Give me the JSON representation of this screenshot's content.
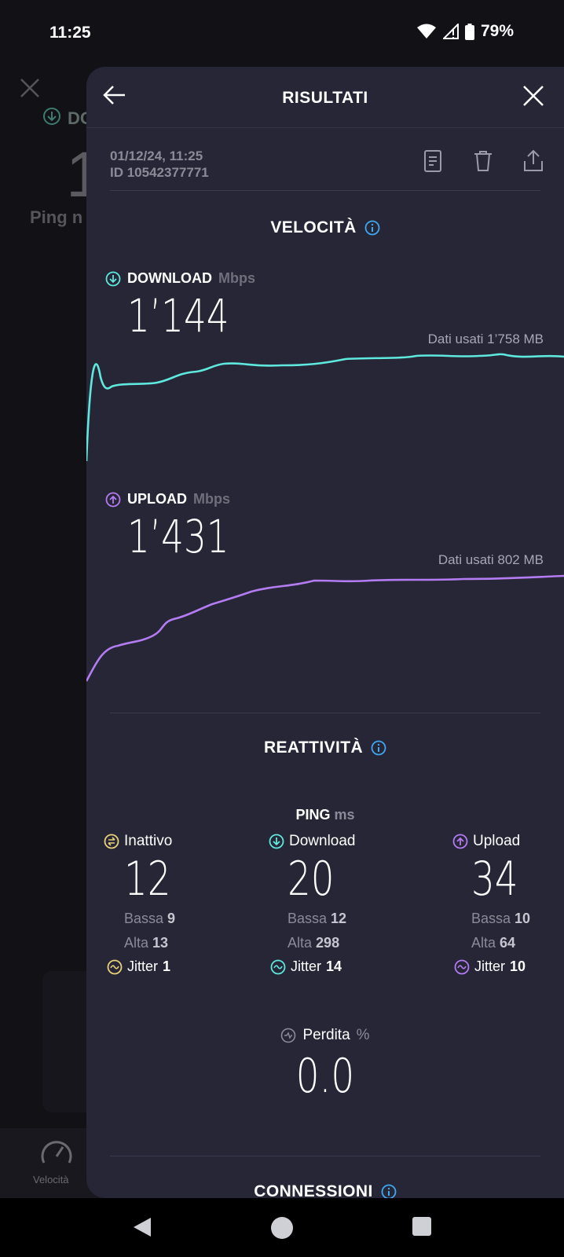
{
  "status": {
    "time": "11:25",
    "battery": "79%"
  },
  "background_app": {
    "download_label": "DO",
    "big_value": "1",
    "ping_label": "Ping n",
    "nav_label": "Velocità"
  },
  "header": {
    "title": "RISULTATI"
  },
  "result": {
    "datetime": "01/12/24, 11:25",
    "id": "ID 10542377771"
  },
  "speed": {
    "title": "VELOCITÀ",
    "download": {
      "label": "DOWNLOAD",
      "unit": "Mbps",
      "value": "1’144",
      "data_used": "Dati usati 1’758 MB",
      "color": "#5fe8de"
    },
    "upload": {
      "label": "UPLOAD",
      "unit": "Mbps",
      "value": "1’431",
      "data_used": "Dati usati 802 MB",
      "color": "#b47cf2"
    }
  },
  "reactivity": {
    "title": "REATTIVITÀ",
    "ping_label": "PING",
    "ping_unit": "ms",
    "columns": [
      {
        "label": "Inattivo",
        "value": "12",
        "low_label": "Bassa",
        "low": "9",
        "high_label": "Alta",
        "high": "13",
        "jitter_label": "Jitter",
        "jitter": "1",
        "color": "#ead27a"
      },
      {
        "label": "Download",
        "value": "20",
        "low_label": "Bassa",
        "low": "12",
        "high_label": "Alta",
        "high": "298",
        "jitter_label": "Jitter",
        "jitter": "14",
        "color": "#5fe8de"
      },
      {
        "label": "Upload",
        "value": "34",
        "low_label": "Bassa",
        "low": "10",
        "high_label": "Alta",
        "high": "64",
        "jitter_label": "Jitter",
        "jitter": "10",
        "color": "#b47cf2"
      }
    ],
    "loss_label": "Perdita",
    "loss_unit": "%",
    "loss_value": "0.0"
  },
  "connections": {
    "title": "CONNESSIONI"
  }
}
